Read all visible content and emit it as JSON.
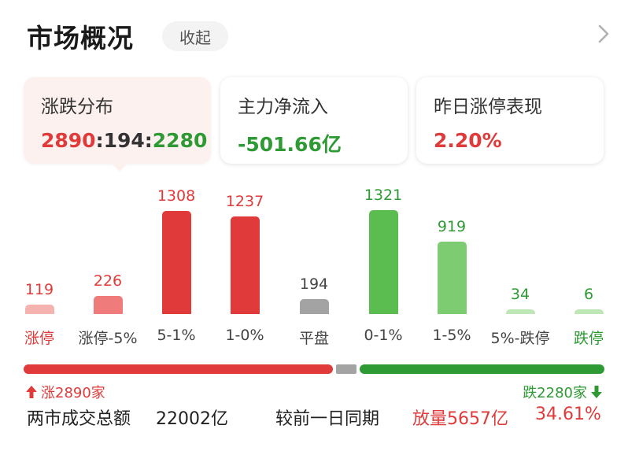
{
  "header": {
    "title": "市场概况",
    "collapse_label": "收起"
  },
  "cards": [
    {
      "label": "涨跌分布",
      "up": "2890",
      "sep1": ":",
      "flat": "194",
      "sep2": ":",
      "down": "2280"
    },
    {
      "label": "主力净流入",
      "value": "-501.66亿"
    },
    {
      "label": "昨日涨停表现",
      "value": "2.20%"
    }
  ],
  "chart_data": {
    "type": "bar",
    "categories": [
      "涨停",
      "涨停-5%",
      "5-1%",
      "1-0%",
      "平盘",
      "0-1%",
      "1-5%",
      "5%-跌停",
      "跌停"
    ],
    "values": [
      119,
      226,
      1308,
      1237,
      194,
      1321,
      919,
      34,
      6
    ],
    "value_labels": [
      "119",
      "226",
      "1308",
      "1237",
      "194",
      "1321",
      "919",
      "34",
      "6"
    ]
  },
  "distribution": {
    "up_count": 2890,
    "flat_count": 194,
    "down_count": 2280
  },
  "summary": {
    "up_label": "涨2890家",
    "down_label": "跌2280家",
    "turnover_label": "两市成交总额",
    "turnover_value": "22002亿",
    "compare_label": "较前一日同期",
    "compare_value": "放量5657亿",
    "compare_pct": "34.61%"
  },
  "colors": {
    "red": "#e03a3a",
    "light_red": "#f5b3b0",
    "mid_red": "#ef7c7a",
    "gray": "#a3a3a3",
    "green": "#5bbd4f",
    "mid_green": "#7dcc72",
    "light_green": "#bfe6b7",
    "dark_green": "#2e9a34"
  },
  "icons": {
    "chevron": "chevron-right-icon",
    "up_arrow": "arrow-up-icon",
    "down_arrow": "arrow-down-icon"
  }
}
